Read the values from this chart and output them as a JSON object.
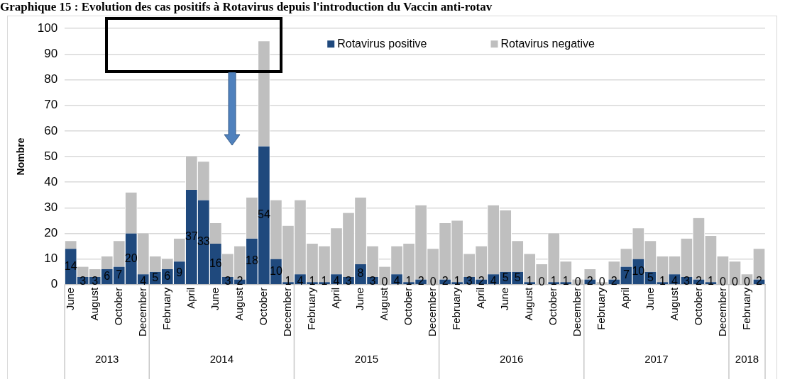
{
  "chart_data": {
    "type": "bar",
    "title": "Graphique 15 : Evolution des cas positifs à Rotavirus  depuis l'introduction du Vaccin anti-rotav",
    "ylabel": "Nombre",
    "stacked": true,
    "legend": "top right",
    "grid": "y",
    "x": [
      "2013-06",
      "2013-07",
      "2013-08",
      "2013-09",
      "2013-10",
      "2013-11",
      "2013-12",
      "2014-01",
      "2014-02",
      "2014-03",
      "2014-04",
      "2014-05",
      "2014-06",
      "2014-07",
      "2014-08",
      "2014-09",
      "2014-10",
      "2014-11",
      "2014-12",
      "2015-01",
      "2015-02",
      "2015-03",
      "2015-04",
      "2015-05",
      "2015-06",
      "2015-07",
      "2015-08",
      "2015-09",
      "2015-10",
      "2015-11",
      "2015-12",
      "2016-01",
      "2016-02",
      "2016-03",
      "2016-04",
      "2016-05",
      "2016-06",
      "2016-07",
      "2016-08",
      "2016-09",
      "2016-10",
      "2016-11",
      "2016-12",
      "2017-01",
      "2017-02",
      "2017-03",
      "2017-04",
      "2017-05",
      "2017-06",
      "2017-07",
      "2017-08",
      "2017-09",
      "2017-10",
      "2017-11",
      "2017-12",
      "2018-01",
      "2018-02",
      "2018-03"
    ],
    "xlim": [
      "2013-05-16",
      "2018-03-16"
    ],
    "xticks": [
      {
        "value": "2013-06",
        "label": "June"
      },
      {
        "value": "2013-08",
        "label": "August"
      },
      {
        "value": "2013-10",
        "label": "October"
      },
      {
        "value": "2013-12",
        "label": "December"
      },
      {
        "value": "2014-02",
        "label": "February"
      },
      {
        "value": "2014-04",
        "label": "April"
      },
      {
        "value": "2014-06",
        "label": "June"
      },
      {
        "value": "2014-08",
        "label": "August"
      },
      {
        "value": "2014-10",
        "label": "October"
      },
      {
        "value": "2014-12",
        "label": "December"
      },
      {
        "value": "2015-02",
        "label": "February"
      },
      {
        "value": "2015-04",
        "label": "April"
      },
      {
        "value": "2015-06",
        "label": "June"
      },
      {
        "value": "2015-08",
        "label": "August"
      },
      {
        "value": "2015-10",
        "label": "October"
      },
      {
        "value": "2015-12",
        "label": "December"
      },
      {
        "value": "2016-02",
        "label": "February"
      },
      {
        "value": "2016-04",
        "label": "April"
      },
      {
        "value": "2016-06",
        "label": "June"
      },
      {
        "value": "2016-08",
        "label": "August"
      },
      {
        "value": "2016-10",
        "label": "October"
      },
      {
        "value": "2016-12",
        "label": "December"
      },
      {
        "value": "2017-02",
        "label": "February"
      },
      {
        "value": "2017-04",
        "label": "April"
      },
      {
        "value": "2017-06",
        "label": "June"
      },
      {
        "value": "2017-08",
        "label": "August"
      },
      {
        "value": "2017-10",
        "label": "October"
      },
      {
        "value": "2017-12",
        "label": "December"
      },
      {
        "value": "2018-02",
        "label": "February"
      }
    ],
    "ylim": [
      0,
      100
    ],
    "yticks": [
      0,
      10,
      20,
      30,
      40,
      50,
      60,
      70,
      80,
      90,
      100
    ],
    "x2lim": [
      "2013-05-16",
      "2018-03-16"
    ],
    "x2ticks": [
      {
        "value": "2013-09",
        "label": "2013"
      },
      {
        "value": "2014-06-16",
        "label": "2014"
      },
      {
        "value": "2015-06-16",
        "label": "2015"
      },
      {
        "value": "2016-06-16",
        "label": "2016"
      },
      {
        "value": "2017-06-16",
        "label": "2017"
      },
      {
        "value": "2018-02",
        "label": "2018"
      }
    ],
    "series": [
      {
        "name": "Rotavirus positive",
        "color": "#1f497d",
        "values": [
          14,
          3,
          3,
          6,
          7,
          20,
          4,
          5,
          6,
          9,
          37,
          33,
          16,
          3,
          2,
          18,
          54,
          10,
          1,
          4,
          1,
          1,
          4,
          3,
          8,
          3,
          0,
          4,
          1,
          2,
          0,
          2,
          1,
          3,
          2,
          4,
          5,
          5,
          1,
          0,
          1,
          1,
          0,
          2,
          0,
          2,
          7,
          10,
          5,
          1,
          4,
          3,
          2,
          1,
          0,
          0,
          0,
          2
        ],
        "value_labels": [
          "14",
          "3",
          "3",
          "6",
          "7",
          "20",
          "4",
          "5",
          "6",
          "9",
          "37",
          "33",
          "16",
          "3",
          "2",
          "18",
          "54",
          "10",
          "1",
          "4",
          "1",
          "1",
          "4",
          "3",
          "8",
          "3",
          "0",
          "4",
          "1",
          "2",
          "0",
          "2",
          "1",
          "3",
          "2",
          "4",
          "5",
          "5",
          "1",
          "0",
          "1",
          "1",
          "0",
          "2",
          "0",
          "2",
          "7",
          "10",
          "5",
          "1",
          "4",
          "3",
          "2",
          "1",
          "0",
          "0",
          "0",
          "2"
        ]
      },
      {
        "name": "Rotavirus negative",
        "color": "#bfbfbf",
        "values": [
          3,
          4,
          3,
          5,
          10,
          16,
          16,
          6,
          4,
          9,
          13,
          15,
          8,
          9,
          13,
          16,
          41,
          23,
          22,
          29,
          15,
          14,
          18,
          25,
          26,
          12,
          7,
          11,
          15,
          29,
          14,
          22,
          24,
          9,
          13,
          27,
          24,
          12,
          11,
          8,
          19,
          8,
          2,
          4,
          1,
          7,
          7,
          12,
          12,
          10,
          7,
          15,
          24,
          18,
          11,
          9,
          4,
          12
        ]
      }
    ]
  }
}
